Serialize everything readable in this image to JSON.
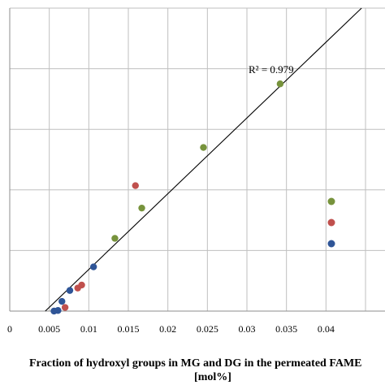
{
  "chart_data": {
    "type": "scatter",
    "xlabel_lines": [
      "Fraction of hydroxyl groups in MG and DG in the permeated FAME",
      "[mol%]"
    ],
    "x_ticks": [
      "0",
      "0.005",
      "0.01",
      "0.015",
      "0.02",
      "0.025",
      "0.03",
      "0.035",
      "0.04"
    ],
    "xlim": [
      0,
      0.045
    ],
    "ylim": [
      0,
      0.05
    ],
    "grid": true,
    "r2_label": "R² = 0.979",
    "trendline": {
      "x": [
        0.0045,
        0.0445
      ],
      "y": [
        0.0,
        0.05
      ]
    },
    "series": [
      {
        "color": "#77933c",
        "points": [
          {
            "x": 0.0342,
            "y": 0.0375
          },
          {
            "x": 0.0245,
            "y": 0.027
          },
          {
            "x": 0.0167,
            "y": 0.017
          },
          {
            "x": 0.0133,
            "y": 0.012
          }
        ]
      },
      {
        "color": "#c0504d",
        "points": [
          {
            "x": 0.0159,
            "y": 0.0207
          },
          {
            "x": 0.0091,
            "y": 0.0043
          },
          {
            "x": 0.0086,
            "y": 0.0038
          },
          {
            "x": 0.007,
            "y": 0.0006
          }
        ]
      },
      {
        "color": "#2f5597",
        "points": [
          {
            "x": 0.0106,
            "y": 0.0073
          },
          {
            "x": 0.0076,
            "y": 0.0034
          },
          {
            "x": 0.0066,
            "y": 0.0016
          },
          {
            "x": 0.0061,
            "y": 0.0001
          },
          {
            "x": 0.0056,
            "y": 0.0
          }
        ]
      }
    ],
    "legend": {
      "placement": "right",
      "entries": 3
    }
  }
}
